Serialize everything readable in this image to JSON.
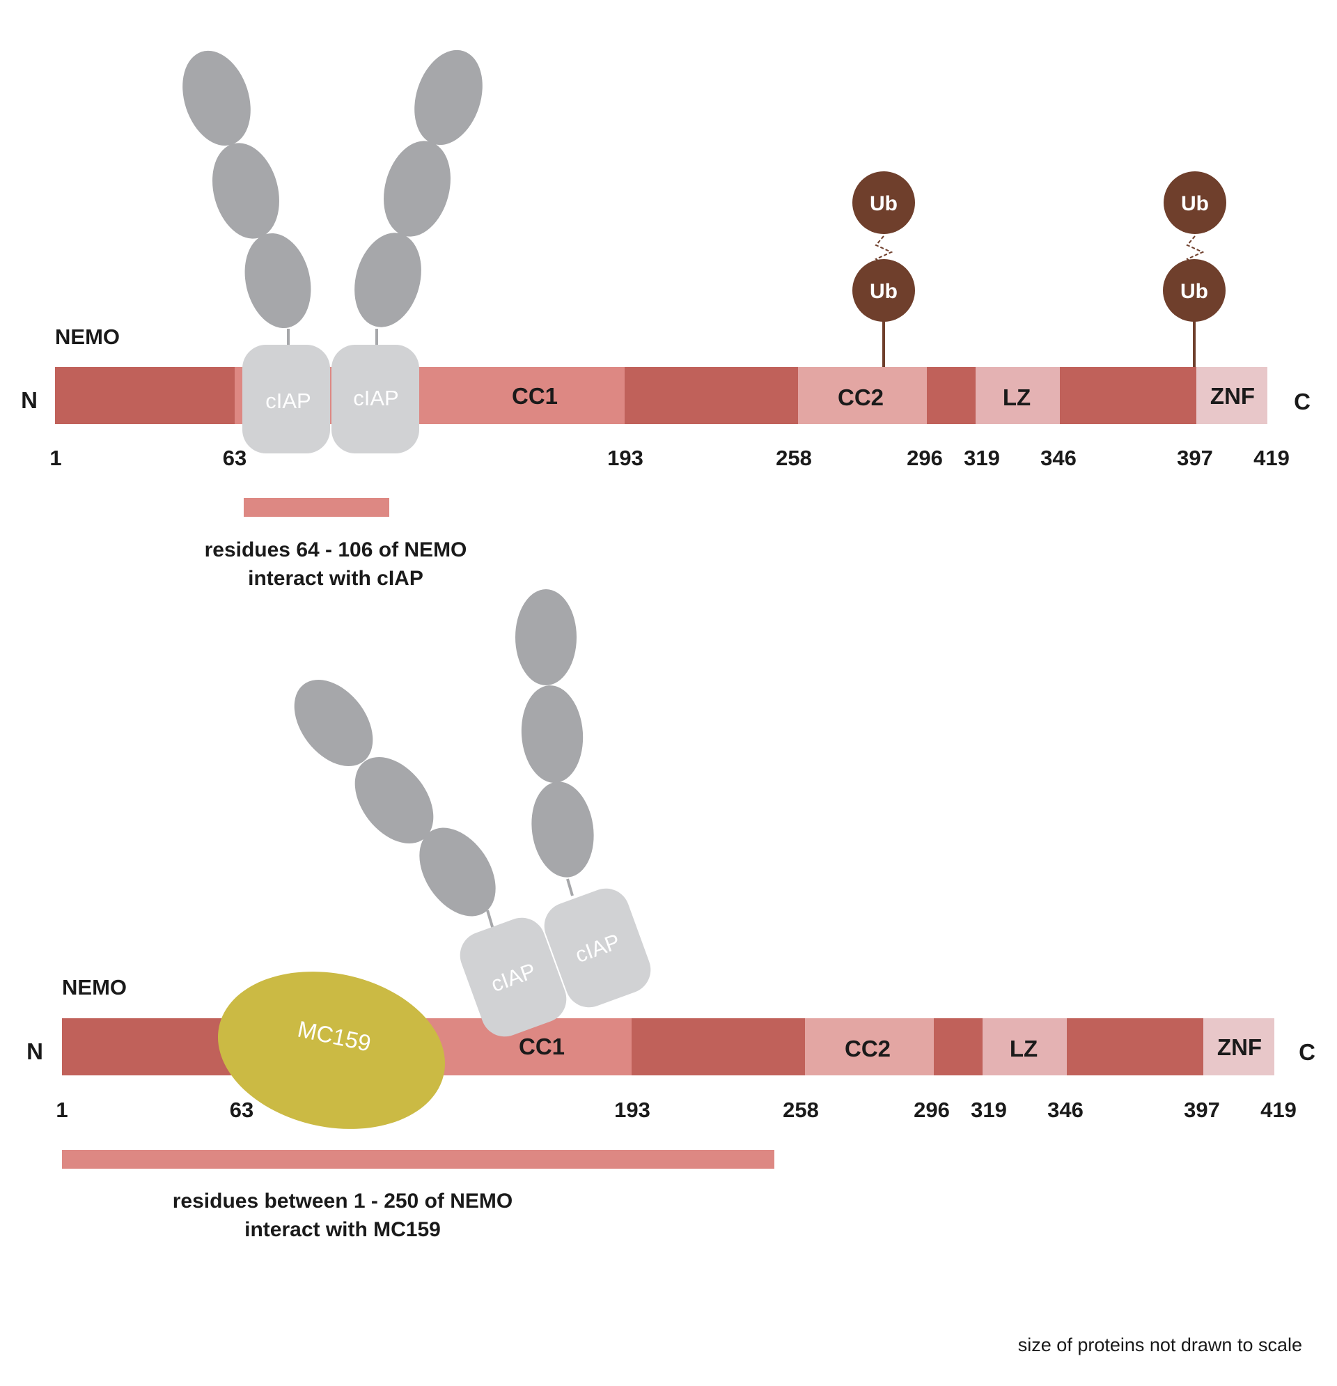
{
  "colors": {
    "dark": "#c0615a",
    "cc": "#dd8883",
    "cc2": "#e3a6a3",
    "lz": "#e4b2b3",
    "znf": "#e8c7c9",
    "ciap": "#d1d2d4",
    "ellipse": "#a6a7aa",
    "ub": "#6f3f2c",
    "mc159": "#cbba44",
    "bar": "#dd8883"
  },
  "top": {
    "title": "NEMO",
    "n_label": "N",
    "c_label": "C",
    "domains": {
      "cc1": "CC1",
      "cc2": "CC2",
      "lz": "LZ",
      "znf": "ZNF"
    },
    "positions": [
      "1",
      "63",
      "193",
      "258",
      "296",
      "319",
      "346",
      "397",
      "419"
    ],
    "ciap_left": "cIAP",
    "ciap_right": "cIAP",
    "ub": [
      "Ub",
      "Ub",
      "Ub",
      "Ub"
    ],
    "caption_line1": "residues 64 - 106 of NEMO",
    "caption_line2": "interact with cIAP"
  },
  "bottom": {
    "title": "NEMO",
    "n_label": "N",
    "c_label": "C",
    "domains": {
      "cc1": "CC1",
      "cc2": "CC2",
      "lz": "LZ",
      "znf": "ZNF"
    },
    "positions": [
      "1",
      "63",
      "193",
      "258",
      "296",
      "319",
      "346",
      "397",
      "419"
    ],
    "ciap_left": "cIAP",
    "ciap_right": "cIAP",
    "mc159": "MC159",
    "caption_line1": "residues between 1 - 250 of NEMO",
    "caption_line2": "interact with MC159"
  },
  "footnote": "size of proteins not drawn to scale"
}
